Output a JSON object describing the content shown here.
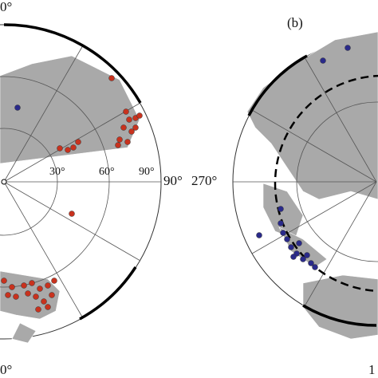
{
  "panel_a": {
    "top_label": "0°",
    "bottom_label": "0°",
    "ring_labels": [
      "30°",
      "60°",
      "90°"
    ],
    "right_label": "90°"
  },
  "panel_b": {
    "panel_label": "(b)",
    "left_label": "270°",
    "bottom_label": "1"
  }
}
